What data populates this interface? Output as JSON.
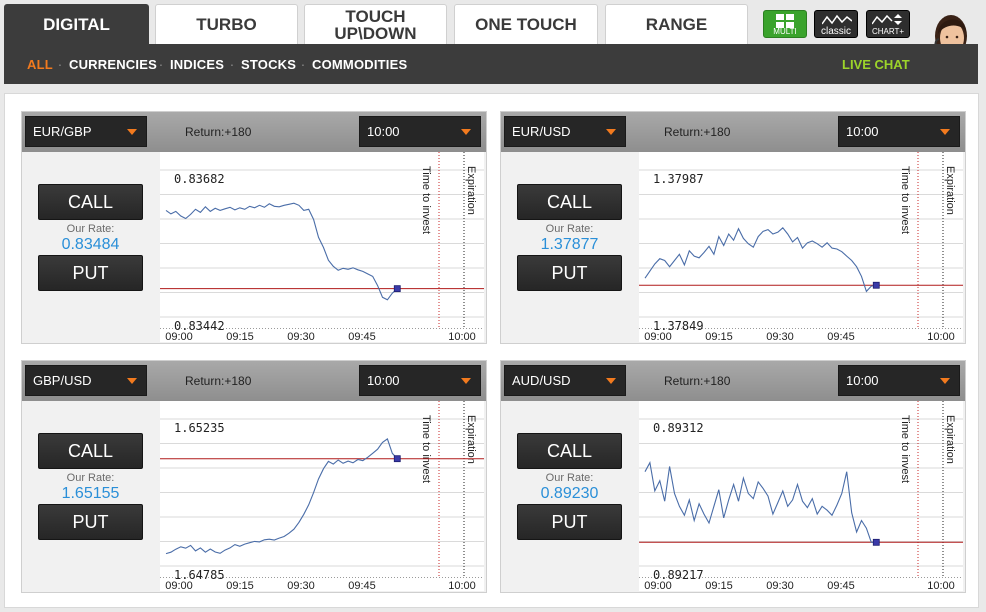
{
  "tabs": [
    "DIGITAL",
    "TURBO",
    "TOUCH UP\\DOWN",
    "ONE TOUCH",
    "RANGE"
  ],
  "tab_touch_lines": [
    "TOUCH",
    "UP\\DOWN"
  ],
  "view_buttons": {
    "multi": "MULTI",
    "classic": "classic",
    "chart": "CHART+"
  },
  "categories": [
    "ALL",
    "CURRENCIES",
    "INDICES",
    "STOCKS",
    "COMMODITIES"
  ],
  "live_chat": "LIVE CHAT",
  "colors": {
    "accent_orange": "#f27a1e",
    "live_chat_green": "#9cd42a",
    "rate_blue": "#2a8fd8",
    "line_blue": "#4a6da8",
    "level_red": "#b01a1a"
  },
  "chart_labels": {
    "time_to_invest": "Time to invest",
    "expiration": "Expiration"
  },
  "panels": [
    {
      "asset": "EUR/GBP",
      "return_text": "Return:+180",
      "expiry": "10:00",
      "call": "CALL",
      "put": "PUT",
      "rate_label": "Our Rate:",
      "rate": "0.83484",
      "chart_data": {
        "type": "line",
        "y_top_label": "0.83682",
        "y_bottom_label": "0.83442",
        "ylim": [
          0.83442,
          0.83682
        ],
        "xlim": [
          0,
          63
        ],
        "x_ticks": [
          "09:00",
          "09:15",
          "09:30",
          "09:45",
          "10:00"
        ],
        "level": 0.83484,
        "series": [
          {
            "values": [
              [
                0,
                0.83638
              ],
              [
                1,
                0.83631
              ],
              [
                2,
                0.83636
              ],
              [
                3,
                0.83627
              ],
              [
                4,
                0.83622
              ],
              [
                5,
                0.8363
              ],
              [
                6,
                0.8364
              ],
              [
                7,
                0.83634
              ],
              [
                8,
                0.83645
              ],
              [
                9,
                0.83636
              ],
              [
                10,
                0.83642
              ],
              [
                11,
                0.83638
              ],
              [
                12,
                0.83641
              ],
              [
                13,
                0.83644
              ],
              [
                14,
                0.83639
              ],
              [
                15,
                0.83643
              ],
              [
                16,
                0.8364
              ],
              [
                17,
                0.83646
              ],
              [
                18,
                0.83643
              ],
              [
                19,
                0.83648
              ],
              [
                20,
                0.83644
              ],
              [
                21,
                0.83651
              ],
              [
                22,
                0.83646
              ],
              [
                23,
                0.83645
              ],
              [
                24,
                0.83648
              ],
              [
                25,
                0.8365
              ],
              [
                26,
                0.83652
              ],
              [
                27,
                0.83648
              ],
              [
                28,
                0.83638
              ],
              [
                29,
                0.8364
              ],
              [
                30,
                0.8362
              ],
              [
                31,
                0.83585
              ],
              [
                32,
                0.83565
              ],
              [
                33,
                0.8354
              ],
              [
                34,
                0.83528
              ],
              [
                35,
                0.8352
              ],
              [
                36,
                0.83524
              ],
              [
                37,
                0.83522
              ],
              [
                38,
                0.83525
              ],
              [
                39,
                0.83521
              ],
              [
                40,
                0.83518
              ],
              [
                41,
                0.83513
              ],
              [
                42,
                0.83508
              ],
              [
                43,
                0.8349
              ],
              [
                44,
                0.83467
              ],
              [
                45,
                0.83462
              ],
              [
                46,
                0.83475
              ],
              [
                47,
                0.83484
              ]
            ]
          }
        ]
      }
    },
    {
      "asset": "EUR/USD",
      "return_text": "Return:+180",
      "expiry": "10:00",
      "call": "CALL",
      "put": "PUT",
      "rate_label": "Our Rate:",
      "rate": "1.37877",
      "chart_data": {
        "type": "line",
        "y_top_label": "1.37987",
        "y_bottom_label": "1.37849",
        "ylim": [
          1.37849,
          1.37987
        ],
        "xlim": [
          0,
          63
        ],
        "x_ticks": [
          "09:00",
          "09:15",
          "09:30",
          "09:45",
          "10:00"
        ],
        "level": 1.37877,
        "series": [
          {
            "values": [
              [
                0,
                1.37885
              ],
              [
                1,
                1.37893
              ],
              [
                2,
                1.37901
              ],
              [
                3,
                1.37907
              ],
              [
                4,
                1.37905
              ],
              [
                5,
                1.37898
              ],
              [
                6,
                1.37905
              ],
              [
                7,
                1.37912
              ],
              [
                8,
                1.379
              ],
              [
                9,
                1.37916
              ],
              [
                10,
                1.3791
              ],
              [
                11,
                1.37908
              ],
              [
                12,
                1.37914
              ],
              [
                13,
                1.37921
              ],
              [
                14,
                1.37912
              ],
              [
                15,
                1.37932
              ],
              [
                16,
                1.37922
              ],
              [
                17,
                1.37935
              ],
              [
                18,
                1.37928
              ],
              [
                19,
                1.37941
              ],
              [
                20,
                1.3793
              ],
              [
                21,
                1.37924
              ],
              [
                22,
                1.3792
              ],
              [
                23,
                1.37932
              ],
              [
                24,
                1.37938
              ],
              [
                25,
                1.3794
              ],
              [
                26,
                1.37935
              ],
              [
                27,
                1.37937
              ],
              [
                28,
                1.37942
              ],
              [
                29,
                1.37935
              ],
              [
                30,
                1.37926
              ],
              [
                31,
                1.37931
              ],
              [
                32,
                1.37919
              ],
              [
                33,
                1.37925
              ],
              [
                34,
                1.37927
              ],
              [
                35,
                1.37924
              ],
              [
                36,
                1.3792
              ],
              [
                37,
                1.37925
              ],
              [
                38,
                1.37919
              ],
              [
                39,
                1.37918
              ],
              [
                40,
                1.37915
              ],
              [
                41,
                1.3791
              ],
              [
                42,
                1.37905
              ],
              [
                43,
                1.37898
              ],
              [
                44,
                1.37887
              ],
              [
                45,
                1.3787
              ],
              [
                46,
                1.37876
              ],
              [
                47,
                1.37877
              ]
            ]
          }
        ]
      }
    },
    {
      "asset": "GBP/USD",
      "return_text": "Return:+180",
      "expiry": "10:00",
      "call": "CALL",
      "put": "PUT",
      "rate_label": "Our Rate:",
      "rate": "1.65155",
      "chart_data": {
        "type": "line",
        "y_top_label": "1.65235",
        "y_bottom_label": "1.64785",
        "ylim": [
          1.64785,
          1.65235
        ],
        "xlim": [
          0,
          63
        ],
        "x_ticks": [
          "09:00",
          "09:15",
          "09:30",
          "09:45",
          "10:00"
        ],
        "level": 1.65155,
        "series": [
          {
            "values": [
              [
                0,
                1.64805
              ],
              [
                1,
                1.6481
              ],
              [
                2,
                1.64821
              ],
              [
                3,
                1.6483
              ],
              [
                4,
                1.64825
              ],
              [
                5,
                1.64835
              ],
              [
                6,
                1.64815
              ],
              [
                7,
                1.64826
              ],
              [
                8,
                1.6481
              ],
              [
                9,
                1.64822
              ],
              [
                10,
                1.64811
              ],
              [
                11,
                1.64806
              ],
              [
                12,
                1.64818
              ],
              [
                13,
                1.64826
              ],
              [
                14,
                1.64838
              ],
              [
                15,
                1.64832
              ],
              [
                16,
                1.6484
              ],
              [
                17,
                1.64845
              ],
              [
                18,
                1.6485
              ],
              [
                19,
                1.64848
              ],
              [
                20,
                1.64856
              ],
              [
                21,
                1.64858
              ],
              [
                22,
                1.64855
              ],
              [
                23,
                1.64862
              ],
              [
                24,
                1.64868
              ],
              [
                25,
                1.6488
              ],
              [
                26,
                1.64895
              ],
              [
                27,
                1.6492
              ],
              [
                28,
                1.6495
              ],
              [
                29,
                1.64985
              ],
              [
                30,
                1.6503
              ],
              [
                31,
                1.6508
              ],
              [
                32,
                1.65118
              ],
              [
                33,
                1.65145
              ],
              [
                34,
                1.65135
              ],
              [
                35,
                1.6515
              ],
              [
                36,
                1.65138
              ],
              [
                37,
                1.65146
              ],
              [
                38,
                1.6514
              ],
              [
                39,
                1.65152
              ],
              [
                40,
                1.65148
              ],
              [
                41,
                1.6516
              ],
              [
                42,
                1.65175
              ],
              [
                43,
                1.6519
              ],
              [
                44,
                1.65215
              ],
              [
                45,
                1.65228
              ],
              [
                46,
                1.65175
              ],
              [
                47,
                1.65155
              ]
            ]
          }
        ]
      }
    },
    {
      "asset": "AUD/USD",
      "return_text": "Return:+180",
      "expiry": "10:00",
      "call": "CALL",
      "put": "PUT",
      "rate_label": "Our Rate:",
      "rate": "0.89230",
      "chart_data": {
        "type": "line",
        "y_top_label": "0.89312",
        "y_bottom_label": "0.89217",
        "ylim": [
          0.89217,
          0.89312
        ],
        "xlim": [
          0,
          63
        ],
        "x_ticks": [
          "09:00",
          "09:15",
          "09:30",
          "09:45",
          "10:00"
        ],
        "level": 0.8923,
        "series": [
          {
            "values": [
              [
                0,
                0.89285
              ],
              [
                1,
                0.89292
              ],
              [
                2,
                0.8927
              ],
              [
                3,
                0.89278
              ],
              [
                4,
                0.89262
              ],
              [
                5,
                0.89289
              ],
              [
                6,
                0.89268
              ],
              [
                7,
                0.89258
              ],
              [
                8,
                0.89251
              ],
              [
                9,
                0.89263
              ],
              [
                10,
                0.89247
              ],
              [
                11,
                0.8926
              ],
              [
                12,
                0.89252
              ],
              [
                13,
                0.89245
              ],
              [
                14,
                0.89258
              ],
              [
                15,
                0.89271
              ],
              [
                16,
                0.89249
              ],
              [
                17,
                0.89263
              ],
              [
                18,
                0.89275
              ],
              [
                19,
                0.89262
              ],
              [
                20,
                0.8928
              ],
              [
                21,
                0.89268
              ],
              [
                22,
                0.89264
              ],
              [
                23,
                0.89277
              ],
              [
                24,
                0.89272
              ],
              [
                25,
                0.89266
              ],
              [
                26,
                0.89252
              ],
              [
                27,
                0.89261
              ],
              [
                28,
                0.8927
              ],
              [
                29,
                0.89258
              ],
              [
                30,
                0.89263
              ],
              [
                31,
                0.89275
              ],
              [
                32,
                0.89262
              ],
              [
                33,
                0.89257
              ],
              [
                34,
                0.89264
              ],
              [
                35,
                0.89252
              ],
              [
                36,
                0.89258
              ],
              [
                37,
                0.89255
              ],
              [
                38,
                0.89251
              ],
              [
                39,
                0.89259
              ],
              [
                40,
                0.89268
              ],
              [
                41,
                0.89285
              ],
              [
                42,
                0.89253
              ],
              [
                43,
                0.89238
              ],
              [
                44,
                0.89247
              ],
              [
                45,
                0.89241
              ],
              [
                46,
                0.8923
              ],
              [
                47,
                0.8923
              ]
            ]
          }
        ]
      }
    }
  ]
}
